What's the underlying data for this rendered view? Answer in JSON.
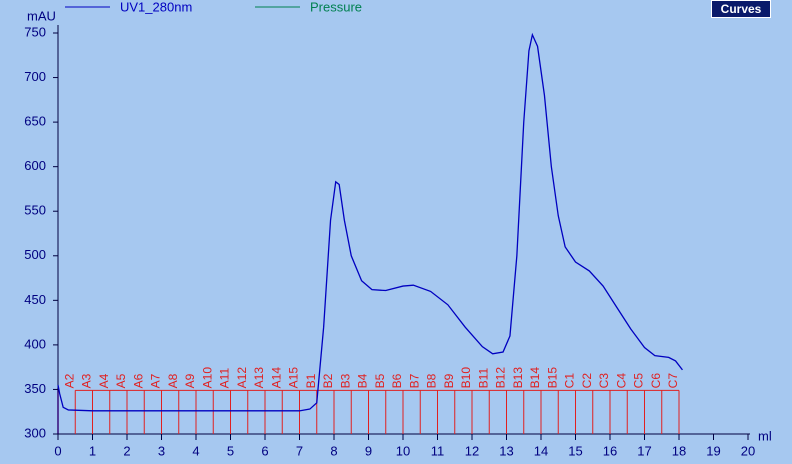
{
  "button": "Curves",
  "chart_data": {
    "type": "line",
    "y_label": "mAU",
    "x_label": "ml",
    "xlim": [
      0,
      20
    ],
    "ylim": [
      300,
      750
    ],
    "xticks": [
      0,
      1,
      2,
      3,
      4,
      5,
      6,
      7,
      8,
      9,
      10,
      11,
      12,
      13,
      14,
      15,
      16,
      17,
      18,
      19,
      20
    ],
    "yticks": [
      300,
      350,
      400,
      450,
      500,
      550,
      600,
      650,
      700,
      750
    ],
    "series": [
      {
        "name": "UV1_280nm",
        "color": "#0000c0",
        "x": [
          0,
          0.05,
          0.15,
          0.3,
          1,
          3,
          5,
          7,
          7.3,
          7.5,
          7.7,
          7.9,
          8.05,
          8.15,
          8.3,
          8.5,
          8.8,
          9.1,
          9.5,
          10,
          10.3,
          10.8,
          11.3,
          11.8,
          12.3,
          12.6,
          12.9,
          13.1,
          13.3,
          13.5,
          13.65,
          13.75,
          13.9,
          14.1,
          14.3,
          14.5,
          14.7,
          15,
          15.4,
          15.8,
          16.2,
          16.6,
          17,
          17.3,
          17.7,
          17.9,
          18.1
        ],
        "values": [
          355,
          345,
          330,
          327,
          326,
          326,
          326,
          326,
          328,
          335,
          420,
          540,
          583,
          580,
          540,
          500,
          472,
          462,
          461,
          466,
          467,
          460,
          445,
          420,
          398,
          390,
          392,
          410,
          500,
          650,
          730,
          748,
          735,
          680,
          600,
          545,
          510,
          493,
          483,
          466,
          442,
          418,
          397,
          388,
          386,
          382,
          372
        ]
      },
      {
        "name": "Pressure",
        "color": "#008050",
        "x": [],
        "values": []
      }
    ],
    "fraction_level": 349,
    "fractions": {
      "labels": [
        "A2",
        "A3",
        "A4",
        "A5",
        "A6",
        "A7",
        "A8",
        "A9",
        "A10",
        "A11",
        "A12",
        "A13",
        "A14",
        "A15",
        "B1",
        "B2",
        "B3",
        "B4",
        "B5",
        "B6",
        "B7",
        "B8",
        "B9",
        "B10",
        "B11",
        "B12",
        "B13",
        "B14",
        "B15",
        "C1",
        "C2",
        "C3",
        "C4",
        "C5",
        "C6",
        "C7"
      ],
      "x": [
        0.5,
        1,
        1.5,
        2,
        2.5,
        3,
        3.5,
        4,
        4.5,
        5,
        5.5,
        6,
        6.5,
        7,
        7.5,
        8,
        8.5,
        9,
        9.5,
        10,
        10.5,
        11,
        11.5,
        12,
        12.5,
        13,
        13.5,
        14,
        14.5,
        15,
        15.5,
        16,
        16.5,
        17,
        17.5,
        18
      ]
    }
  }
}
